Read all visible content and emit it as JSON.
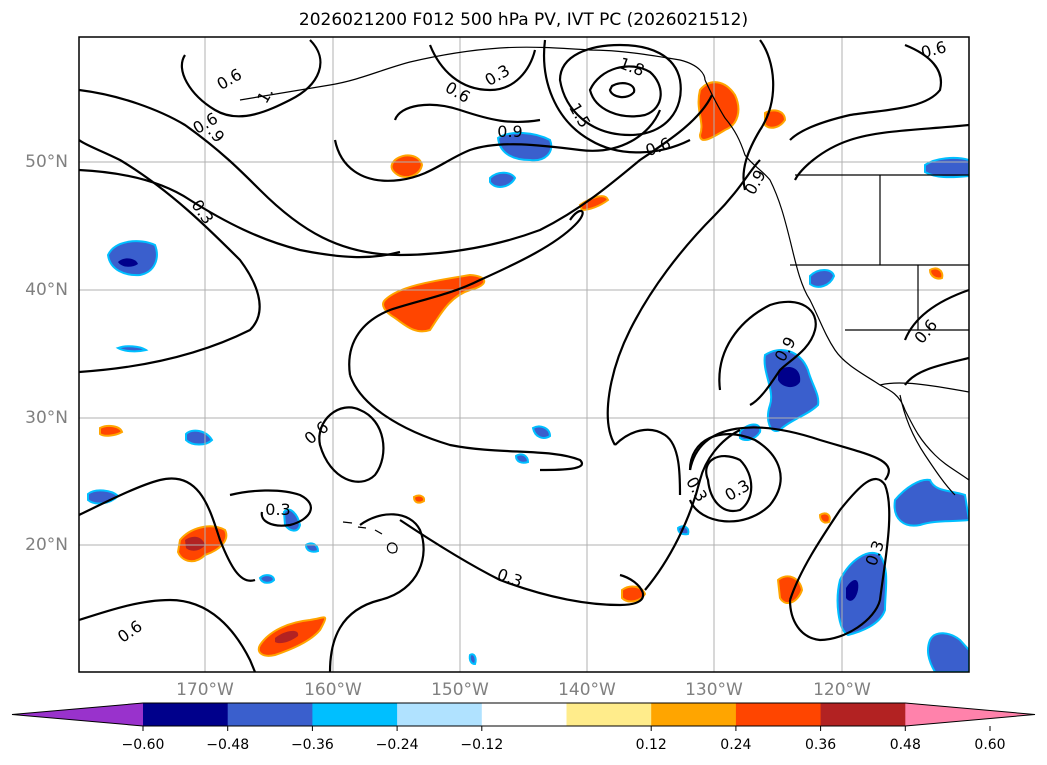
{
  "title": "2026021200 F012 500 hPa PV, IVT PC (2026021512)",
  "lat_labels": [
    "50°N",
    "40°N",
    "30°N",
    "20°N"
  ],
  "lon_labels": [
    "170°W",
    "160°W",
    "150°W",
    "140°W",
    "130°W",
    "120°W"
  ],
  "contour_labels": [
    "0.3",
    "0.6",
    "0.9",
    "1.5",
    "1.8",
    "0.3",
    "0.6",
    "0.9",
    "0.3",
    "0.6",
    "0.3",
    "0.6",
    "0.6",
    "0.9",
    "0.3",
    "0.3",
    "0.3",
    "0.6",
    "0.6",
    "0.6",
    "1.",
    ".9"
  ],
  "colorbar": {
    "ticks": [
      "−0.60",
      "−0.48",
      "−0.36",
      "−0.24",
      "−0.12",
      "0.12",
      "0.24",
      "0.36",
      "0.48",
      "0.60"
    ],
    "colors": [
      "#9932cc",
      "#00008b",
      "#3a5fcd",
      "#00bfff",
      "#b0e2ff",
      "#ffffff",
      "#ffec8b",
      "#ffa500",
      "#ff4500",
      "#b22222",
      "#ff82ab"
    ]
  }
}
